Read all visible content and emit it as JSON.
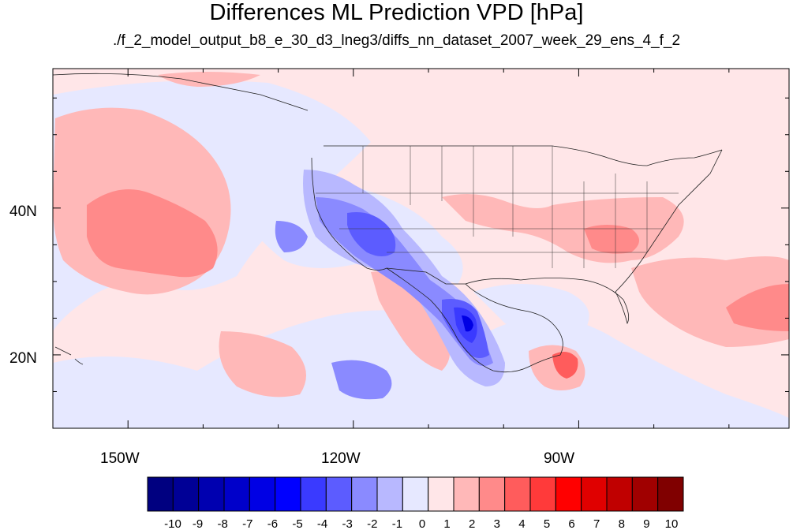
{
  "title": "Differences ML Prediction VPD [hPa]",
  "subtitle": "./f_2_model_output_b8_e_30_d3_lneg3/diffs_nn_dataset_2007_week_29_ens_4_f_2",
  "map": {
    "region": "North America / Eastern Pacific",
    "lon_range": [
      -160,
      -62
    ],
    "lat_range": [
      10,
      59
    ],
    "x_ticks": [
      {
        "lon": -150,
        "label": "150W"
      },
      {
        "lon": -120,
        "label": "120W"
      },
      {
        "lon": -90,
        "label": "90W"
      }
    ],
    "y_ticks": [
      {
        "lat": 40,
        "label": "40N"
      },
      {
        "lat": 20,
        "label": "20N"
      }
    ]
  },
  "colorbar": {
    "labels": [
      "-10",
      "-9",
      "-8",
      "-7",
      "-6",
      "-5",
      "-4",
      "-3",
      "-2",
      "-1",
      "0",
      "1",
      "2",
      "3",
      "4",
      "5",
      "6",
      "7",
      "8",
      "9",
      "10"
    ],
    "colors": [
      "#000080",
      "#000096",
      "#0000b0",
      "#0000ca",
      "#0000e4",
      "#0000ff",
      "#3a3aff",
      "#5c5cff",
      "#8a8aff",
      "#b8b8ff",
      "#e6e8ff",
      "#ffe6e8",
      "#ffb8b8",
      "#ff8a8a",
      "#ff5c5c",
      "#ff3a3a",
      "#ff0000",
      "#e00000",
      "#c00000",
      "#a00000",
      "#800000"
    ]
  },
  "colors": {
    "base_positive": "#ffe6e8",
    "base_negative": "#e6e8ff"
  }
}
